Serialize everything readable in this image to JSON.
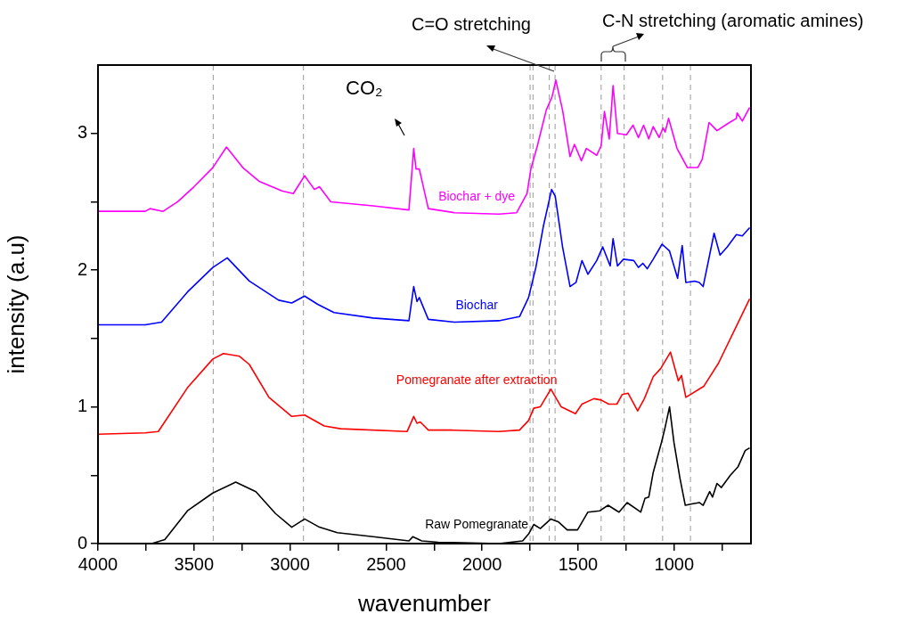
{
  "chart_data": {
    "type": "line",
    "xlabel": "wavenumber",
    "ylabel": "intensity (a.u)",
    "xlim": [
      4000,
      600
    ],
    "ylim": [
      0,
      3.5
    ],
    "xticks": [
      4000,
      {
        "value": 3750,
        "label": null
      },
      3500,
      {
        "value": 3250,
        "label": null
      },
      3000,
      {
        "value": 2750,
        "label": null
      },
      2500,
      {
        "value": 2250,
        "label": null
      },
      2000,
      {
        "value": 1750,
        "label": null
      },
      1500,
      {
        "value": 1250,
        "label": null
      },
      1000,
      {
        "value": 750,
        "label": null
      }
    ],
    "yticks": [
      0,
      {
        "value": 0.5,
        "label": null
      },
      1,
      {
        "value": 1.5,
        "label": null
      },
      2,
      {
        "value": 2.5,
        "label": null
      },
      3
    ],
    "grid": false,
    "legend": false,
    "marker": "none",
    "ref_lines": [
      {
        "axis": "x",
        "value": 3400,
        "color": "#999999",
        "line_style": "dashed"
      },
      {
        "axis": "x",
        "value": 2930,
        "color": "#999999",
        "line_style": "dashed"
      },
      {
        "axis": "x",
        "value": 1750,
        "color": "#999999",
        "line_style": "dashed"
      },
      {
        "axis": "x",
        "value": 1735,
        "color": "#999999",
        "line_style": "dashed"
      },
      {
        "axis": "x",
        "value": 1650,
        "color": "#999999",
        "line_style": "dashed"
      },
      {
        "axis": "x",
        "value": 1620,
        "color": "#999999",
        "line_style": "dashed"
      },
      {
        "axis": "x",
        "value": 1380,
        "color": "#999999",
        "line_style": "dashed"
      },
      {
        "axis": "x",
        "value": 1260,
        "color": "#999999",
        "line_style": "dashed"
      },
      {
        "axis": "x",
        "value": 1060,
        "color": "#999999",
        "line_style": "dashed"
      },
      {
        "axis": "x",
        "value": 915,
        "color": "#999999",
        "line_style": "dashed"
      }
    ],
    "annotations": [
      "CO₂",
      "C=O stretching",
      "C-N stretching (aromatic amines)"
    ],
    "series": [
      {
        "name": "Raw Pomegranate",
        "color": "#000000",
        "x": [
          4000,
          3720,
          3652,
          3534,
          3402,
          3283,
          3178,
          3076,
          2991,
          2924,
          2847,
          2754,
          2568,
          2381,
          2361,
          2314,
          2229,
          1913,
          1789,
          1758,
          1731,
          1697,
          1642,
          1604,
          1557,
          1503,
          1449,
          1387,
          1344,
          1287,
          1245,
          1174,
          1152,
          1132,
          1109,
          1066,
          1047,
          1024,
          1001,
          970,
          942,
          908,
          869,
          849,
          815,
          800,
          777,
          754,
          707,
          668,
          630,
          607
        ],
        "values": [
          0,
          0,
          0.03,
          0.24,
          0.37,
          0.45,
          0.38,
          0.22,
          0.12,
          0.18,
          0.12,
          0.08,
          0.05,
          0.02,
          0.05,
          0.02,
          0.01,
          0,
          0.02,
          0.07,
          0.14,
          0.11,
          0.18,
          0.16,
          0.1,
          0.1,
          0.23,
          0.24,
          0.28,
          0.23,
          0.3,
          0.23,
          0.33,
          0.34,
          0.52,
          0.74,
          0.85,
          1.0,
          0.74,
          0.48,
          0.28,
          0.29,
          0.3,
          0.28,
          0.38,
          0.34,
          0.44,
          0.41,
          0.5,
          0.56,
          0.68,
          0.7
        ]
      },
      {
        "name": "Pomegranate after extraction",
        "color": "#ff0000",
        "x": [
          4000,
          3754,
          3686,
          3534,
          3402,
          3347,
          3263,
          3212,
          3110,
          2991,
          2924,
          2822,
          2737,
          2390,
          2356,
          2339,
          2322,
          2280,
          2161,
          1913,
          1805,
          1758,
          1731,
          1697,
          1642,
          1588,
          1514,
          1480,
          1418,
          1380,
          1341,
          1298,
          1271,
          1240,
          1190,
          1155,
          1109,
          1070,
          1019,
          978,
          962,
          939,
          846,
          769,
          676,
          607
        ],
        "values": [
          0.8,
          0.81,
          0.82,
          1.14,
          1.35,
          1.39,
          1.37,
          1.31,
          1.07,
          0.93,
          0.94,
          0.86,
          0.84,
          0.82,
          0.93,
          0.88,
          0.89,
          0.83,
          0.83,
          0.82,
          0.83,
          0.9,
          0.99,
          1.0,
          1.13,
          1.0,
          0.95,
          1.02,
          1.06,
          1.05,
          1.02,
          1.02,
          1.09,
          1.1,
          0.97,
          1.06,
          1.22,
          1.28,
          1.4,
          1.19,
          1.23,
          1.07,
          1.15,
          1.32,
          1.59,
          1.79
        ]
      },
      {
        "name": "Biochar",
        "color": "#0000ff",
        "x": [
          4000,
          3754,
          3669,
          3534,
          3402,
          3327,
          3212,
          3059,
          2991,
          2924,
          2856,
          2771,
          2568,
          2381,
          2356,
          2339,
          2327,
          2280,
          2144,
          1913,
          1805,
          1758,
          1720,
          1681,
          1638,
          1619,
          1581,
          1542,
          1511,
          1480,
          1449,
          1403,
          1372,
          1333,
          1318,
          1295,
          1264,
          1210,
          1186,
          1163,
          1140,
          1109,
          1063,
          1024,
          982,
          958,
          939,
          893,
          869,
          849,
          792,
          761,
          723,
          676,
          645,
          607
        ],
        "values": [
          1.6,
          1.6,
          1.62,
          1.84,
          2.02,
          2.09,
          1.92,
          1.78,
          1.76,
          1.81,
          1.75,
          1.69,
          1.65,
          1.63,
          1.88,
          1.77,
          1.8,
          1.64,
          1.62,
          1.63,
          1.66,
          1.8,
          2.02,
          2.32,
          2.59,
          2.54,
          2.17,
          1.88,
          1.91,
          2.07,
          1.97,
          2.07,
          2.17,
          2.03,
          2.23,
          2.03,
          2.08,
          2.07,
          2.02,
          2.05,
          2.01,
          2.08,
          2.19,
          2.14,
          1.94,
          2.18,
          1.91,
          1.92,
          1.91,
          1.88,
          2.27,
          2.11,
          2.17,
          2.26,
          2.25,
          2.31
        ]
      },
      {
        "name": "Biochar + dye",
        "color": "#ff00ff",
        "x": [
          4000,
          3754,
          3729,
          3661,
          3585,
          3500,
          3402,
          3331,
          3246,
          3161,
          3042,
          2983,
          2924,
          2873,
          2847,
          2788,
          2568,
          2381,
          2356,
          2344,
          2327,
          2280,
          2144,
          1913,
          1820,
          1766,
          1746,
          1712,
          1666,
          1635,
          1616,
          1581,
          1542,
          1519,
          1483,
          1457,
          1403,
          1380,
          1363,
          1338,
          1318,
          1295,
          1248,
          1214,
          1186,
          1159,
          1132,
          1109,
          1078,
          1058,
          1047,
          1029,
          985,
          931,
          877,
          854,
          818,
          777,
          723,
          676,
          672,
          645,
          607
        ],
        "values": [
          2.43,
          2.43,
          2.45,
          2.43,
          2.5,
          2.61,
          2.75,
          2.9,
          2.75,
          2.65,
          2.58,
          2.56,
          2.69,
          2.59,
          2.61,
          2.5,
          2.47,
          2.44,
          2.89,
          2.74,
          2.74,
          2.45,
          2.42,
          2.41,
          2.42,
          2.56,
          2.74,
          2.91,
          3.17,
          3.27,
          3.39,
          3.17,
          2.83,
          2.92,
          2.8,
          2.89,
          2.84,
          2.91,
          3.16,
          2.96,
          3.35,
          3.0,
          2.99,
          3.06,
          2.97,
          3.06,
          2.96,
          3.05,
          2.97,
          3.04,
          3.01,
          3.11,
          2.89,
          2.75,
          2.75,
          2.81,
          3.08,
          3.02,
          3.07,
          3.11,
          3.15,
          3.09,
          3.19
        ]
      }
    ]
  }
}
